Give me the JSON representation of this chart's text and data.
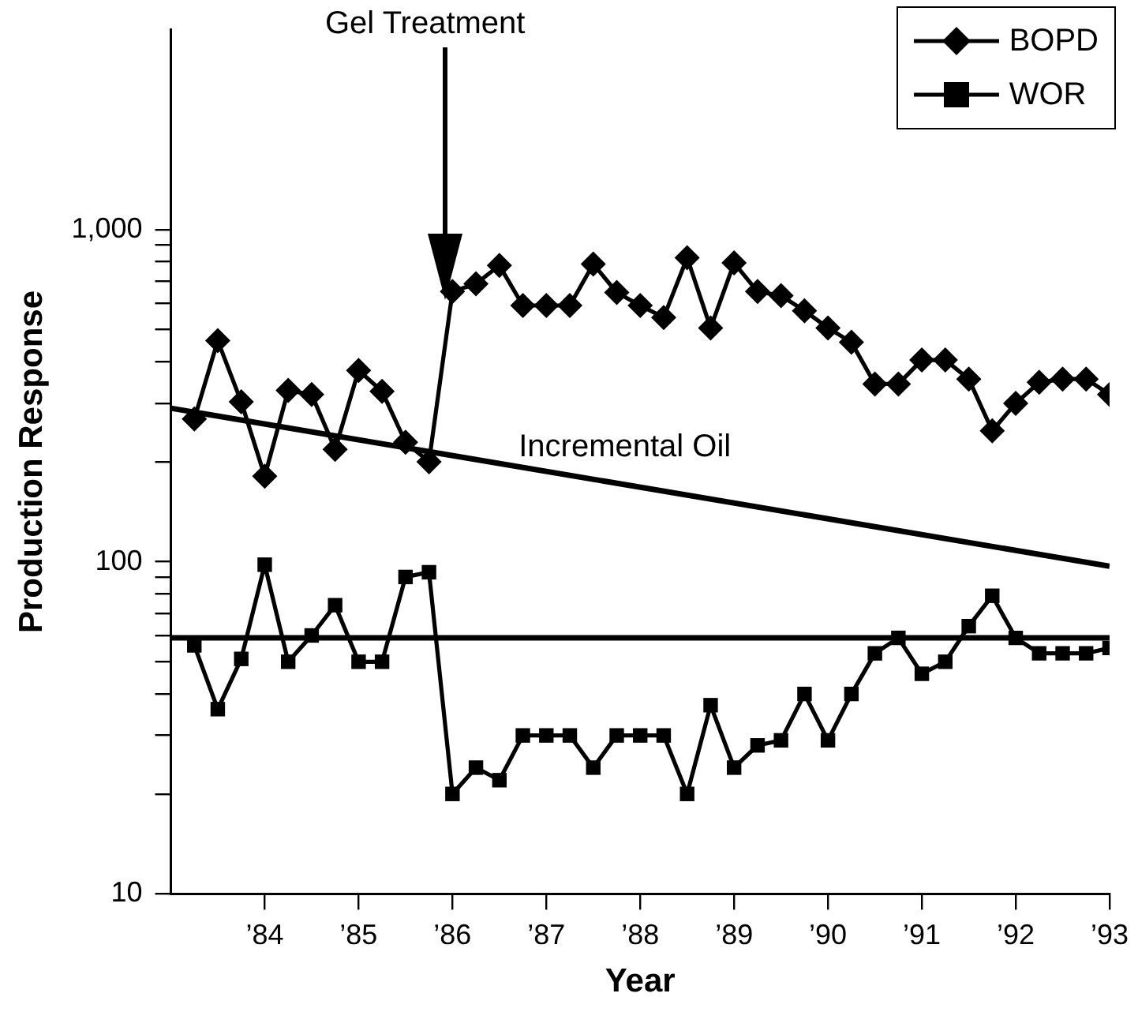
{
  "chart_data": {
    "type": "line",
    "xlabel": "Year",
    "ylabel": "Production Response",
    "xlim": [
      1983,
      1993
    ],
    "ylim": [
      10,
      4000
    ],
    "log": "y",
    "grid": false,
    "legend": "top right",
    "xticks": [
      {
        "value": 1984,
        "label": "’84"
      },
      {
        "value": 1985,
        "label": "’85"
      },
      {
        "value": 1986,
        "label": "’86"
      },
      {
        "value": 1987,
        "label": "’87"
      },
      {
        "value": 1988,
        "label": "’88"
      },
      {
        "value": 1989,
        "label": "’89"
      },
      {
        "value": 1990,
        "label": "’90"
      },
      {
        "value": 1991,
        "label": "’91"
      },
      {
        "value": 1992,
        "label": "’92"
      },
      {
        "value": 1993,
        "label": "’93"
      }
    ],
    "yticks": [
      10,
      {
        "value": 20,
        "label": null
      },
      {
        "value": 30,
        "label": null
      },
      {
        "value": 40,
        "label": null
      },
      {
        "value": 50,
        "label": null
      },
      {
        "value": 60,
        "label": null
      },
      {
        "value": 70,
        "label": null
      },
      {
        "value": 80,
        "label": null
      },
      {
        "value": 90,
        "label": null
      },
      100,
      {
        "value": 200,
        "label": null
      },
      {
        "value": 300,
        "label": null
      },
      {
        "value": 400,
        "label": null
      },
      {
        "value": 500,
        "label": null
      },
      {
        "value": 600,
        "label": null
      },
      {
        "value": 700,
        "label": null
      },
      {
        "value": 800,
        "label": null
      },
      {
        "value": 900,
        "label": null
      },
      {
        "value": 1000,
        "label": "1,000"
      }
    ],
    "x": [
      1983.25,
      1983.5,
      1983.75,
      1984,
      1984.25,
      1984.5,
      1984.75,
      1985,
      1985.25,
      1985.5,
      1985.75,
      1986,
      1986.25,
      1986.5,
      1986.75,
      1987,
      1987.25,
      1987.5,
      1987.75,
      1988,
      1988.25,
      1988.5,
      1988.75,
      1989,
      1989.25,
      1989.5,
      1989.75,
      1990,
      1990.25,
      1990.5,
      1990.75,
      1991,
      1991.25,
      1991.5,
      1991.75,
      1992,
      1992.25,
      1992.5,
      1992.75,
      1993
    ],
    "series": [
      {
        "name": "BOPD",
        "color": "#000000",
        "marker": "diamond",
        "values": [
          269,
          463,
          303,
          181,
          328,
          319,
          218,
          377,
          326,
          229,
          200,
          651,
          687,
          780,
          591,
          591,
          591,
          788,
          647,
          591,
          544,
          823,
          506,
          794,
          651,
          633,
          570,
          506,
          458,
          343,
          343,
          405,
          405,
          355,
          248,
          300,
          347,
          355,
          355,
          319
        ]
      },
      {
        "name": "WOR",
        "color": "#000000",
        "marker": "square",
        "values": [
          56,
          36,
          51,
          98,
          50,
          60,
          74,
          50,
          50,
          90,
          93,
          20,
          24,
          22,
          30,
          30,
          30,
          24,
          30,
          30,
          30,
          20,
          37,
          24,
          28,
          29,
          40,
          29,
          40,
          53,
          59,
          46,
          50,
          64,
          79,
          59,
          53,
          53,
          53,
          55
        ]
      },
      {
        "name": "Incremental Oil",
        "color": "#000000",
        "marker": "none",
        "x": [
          1983,
          1993
        ],
        "values": [
          290,
          97
        ]
      }
    ],
    "ref_lines": [
      {
        "axis": "y",
        "value": 59,
        "color": "#000000"
      }
    ],
    "annotations": [
      "Gel Treatment"
    ]
  }
}
